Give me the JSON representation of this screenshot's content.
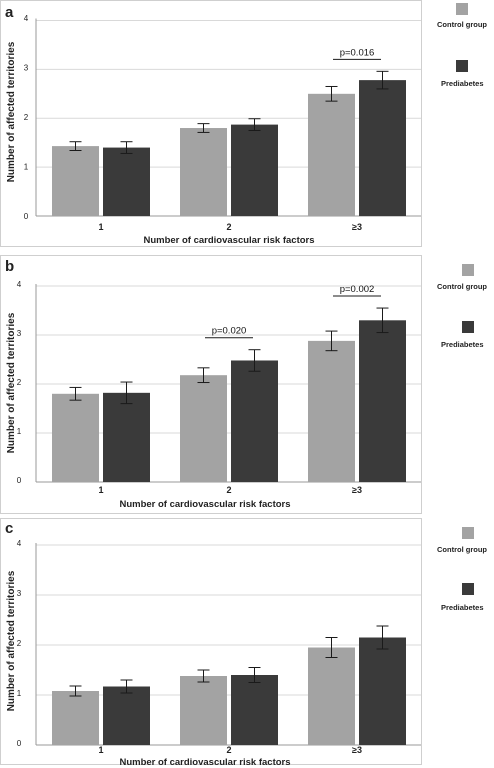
{
  "panels": [
    {
      "panel_label": "a",
      "legend": {
        "control": "Control group",
        "prediabetes": "Prediabetes"
      }
    },
    {
      "panel_label": "b",
      "legend": {
        "control": "Control group",
        "prediabetes": "Prediabetes"
      }
    },
    {
      "panel_label": "c",
      "legend": {
        "control": "Control group",
        "prediabetes": "Prediabetes"
      }
    }
  ],
  "colors": {
    "control": "#a3a3a3",
    "prediabetes": "#3a3a3a",
    "grid": "#d9d9d9",
    "axis": "#999999"
  },
  "chart_data": [
    {
      "type": "bar",
      "panel": "a",
      "categories": [
        "1",
        "2",
        "≥3"
      ],
      "xlabel": "Number of cardiovascular risk factors",
      "ylabel": "Number of affected territories",
      "ylim": [
        0,
        4
      ],
      "yticks": [
        "0",
        "1",
        "2",
        "3",
        "4"
      ],
      "grid": true,
      "legend_position": "right",
      "series": [
        {
          "name": "Control group",
          "values": [
            1.43,
            1.8,
            2.5
          ],
          "error": [
            0.09,
            0.09,
            0.15
          ]
        },
        {
          "name": "Prediabetes",
          "values": [
            1.4,
            1.87,
            2.78
          ],
          "error": [
            0.12,
            0.12,
            0.18
          ]
        }
      ],
      "annotations": [
        {
          "category": "≥3",
          "text": "p=0.016"
        }
      ]
    },
    {
      "type": "bar",
      "panel": "b",
      "categories": [
        "1",
        "2",
        "≥3"
      ],
      "xlabel": "Number of cardiovascular risk factors",
      "ylabel": "Number of affected territories",
      "ylim": [
        0,
        4
      ],
      "yticks": [
        "0",
        "1",
        "2",
        "3",
        "4"
      ],
      "grid": true,
      "legend_position": "right",
      "series": [
        {
          "name": "Control group",
          "values": [
            1.8,
            2.18,
            2.88
          ],
          "error": [
            0.13,
            0.15,
            0.2
          ]
        },
        {
          "name": "Prediabetes",
          "values": [
            1.82,
            2.48,
            3.3
          ],
          "error": [
            0.22,
            0.22,
            0.25
          ]
        }
      ],
      "annotations": [
        {
          "category": "2",
          "text": "p=0.020"
        },
        {
          "category": "≥3",
          "text": "p=0.002"
        }
      ]
    },
    {
      "type": "bar",
      "panel": "c",
      "categories": [
        "1",
        "2",
        "≥3"
      ],
      "xlabel": "Number of cardiovascular risk factors",
      "ylabel": "Number of affected territories",
      "ylim": [
        0,
        4
      ],
      "yticks": [
        "0",
        "1",
        "2",
        "3",
        "4"
      ],
      "grid": true,
      "legend_position": "right",
      "series": [
        {
          "name": "Control group",
          "values": [
            1.08,
            1.38,
            1.95
          ],
          "error": [
            0.1,
            0.12,
            0.2
          ]
        },
        {
          "name": "Prediabetes",
          "values": [
            1.17,
            1.4,
            2.15
          ],
          "error": [
            0.13,
            0.15,
            0.23
          ]
        }
      ],
      "annotations": []
    }
  ]
}
